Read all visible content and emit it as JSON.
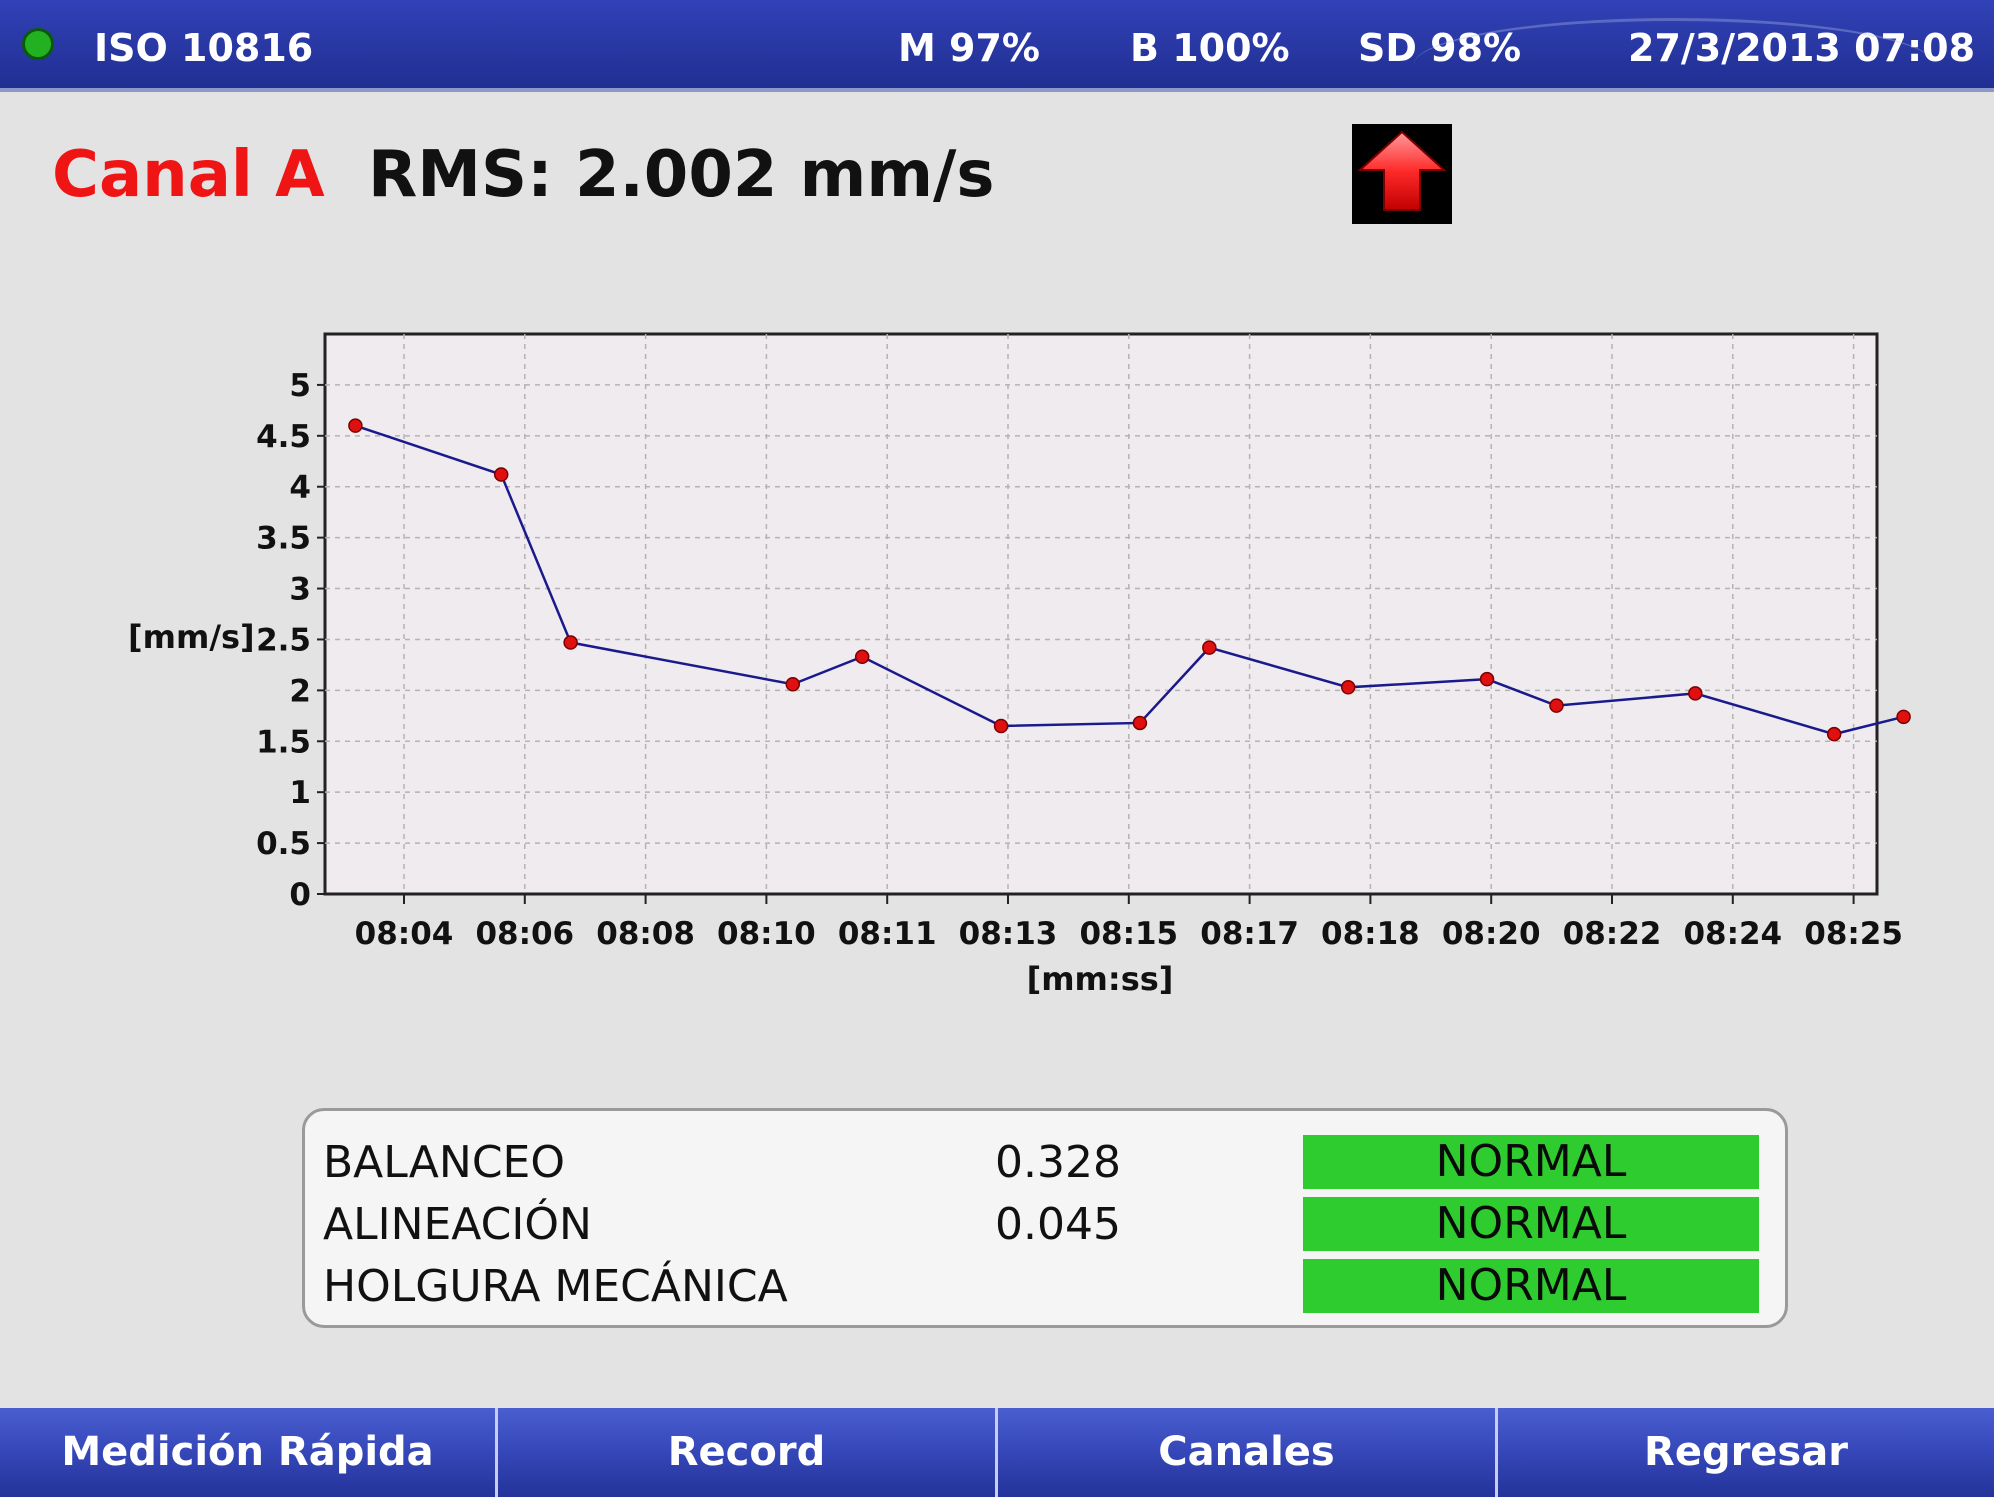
{
  "status_bar": {
    "standard": "ISO 10816",
    "memory": "M 97%",
    "battery": "B 100%",
    "sd_card": "SD 98%",
    "datetime": "27/3/2013 07:08",
    "status_color": "#21b121"
  },
  "header": {
    "channel": "Canal A",
    "rms": "RMS: 2.002 mm/s",
    "trend_icon": "red-up-arrow-icon"
  },
  "chart_data": {
    "type": "line",
    "xlabel": "[mm:ss]",
    "ylabel": "[mm/s]",
    "ylim": [
      0,
      5.5
    ],
    "yticks": [
      "0",
      "0.5",
      "1",
      "1.5",
      "2",
      "2.5",
      "3",
      "3.5",
      "4",
      "4.5",
      "5"
    ],
    "xticks": [
      "08:04",
      "08:06",
      "08:08",
      "08:10",
      "08:11",
      "08:13",
      "08:15",
      "08:17",
      "08:18",
      "08:20",
      "08:22",
      "08:24",
      "08:25"
    ],
    "grid": true,
    "series": [
      {
        "color": "#1a1a8c",
        "marker_color": "#e01010",
        "points": [
          {
            "t": "08:03.3",
            "v": 4.6
          },
          {
            "t": "08:05.4",
            "v": 4.12
          },
          {
            "t": "08:06.4",
            "v": 2.47
          },
          {
            "t": "08:09.6",
            "v": 2.06
          },
          {
            "t": "08:10.6",
            "v": 2.33
          },
          {
            "t": "08:12.6",
            "v": 1.65
          },
          {
            "t": "08:14.6",
            "v": 1.68
          },
          {
            "t": "08:15.6",
            "v": 2.42
          },
          {
            "t": "08:17.6",
            "v": 2.03
          },
          {
            "t": "08:19.6",
            "v": 2.11
          },
          {
            "t": "08:20.6",
            "v": 1.85
          },
          {
            "t": "08:22.6",
            "v": 1.97
          },
          {
            "t": "08:24.6",
            "v": 1.57
          },
          {
            "t": "08:25.6",
            "v": 1.74
          }
        ]
      }
    ]
  },
  "diagnostics": [
    {
      "name": "BALANCEO",
      "value": "0.328",
      "state": "NORMAL"
    },
    {
      "name": "ALINEACIÓN",
      "value": "0.045",
      "state": "NORMAL"
    },
    {
      "name": "HOLGURA MECÁNICA",
      "value": "",
      "state": "NORMAL"
    }
  ],
  "softkeys": {
    "quick": "Medición Rápida",
    "record": "Record",
    "channels": "Canales",
    "back": "Regresar"
  }
}
